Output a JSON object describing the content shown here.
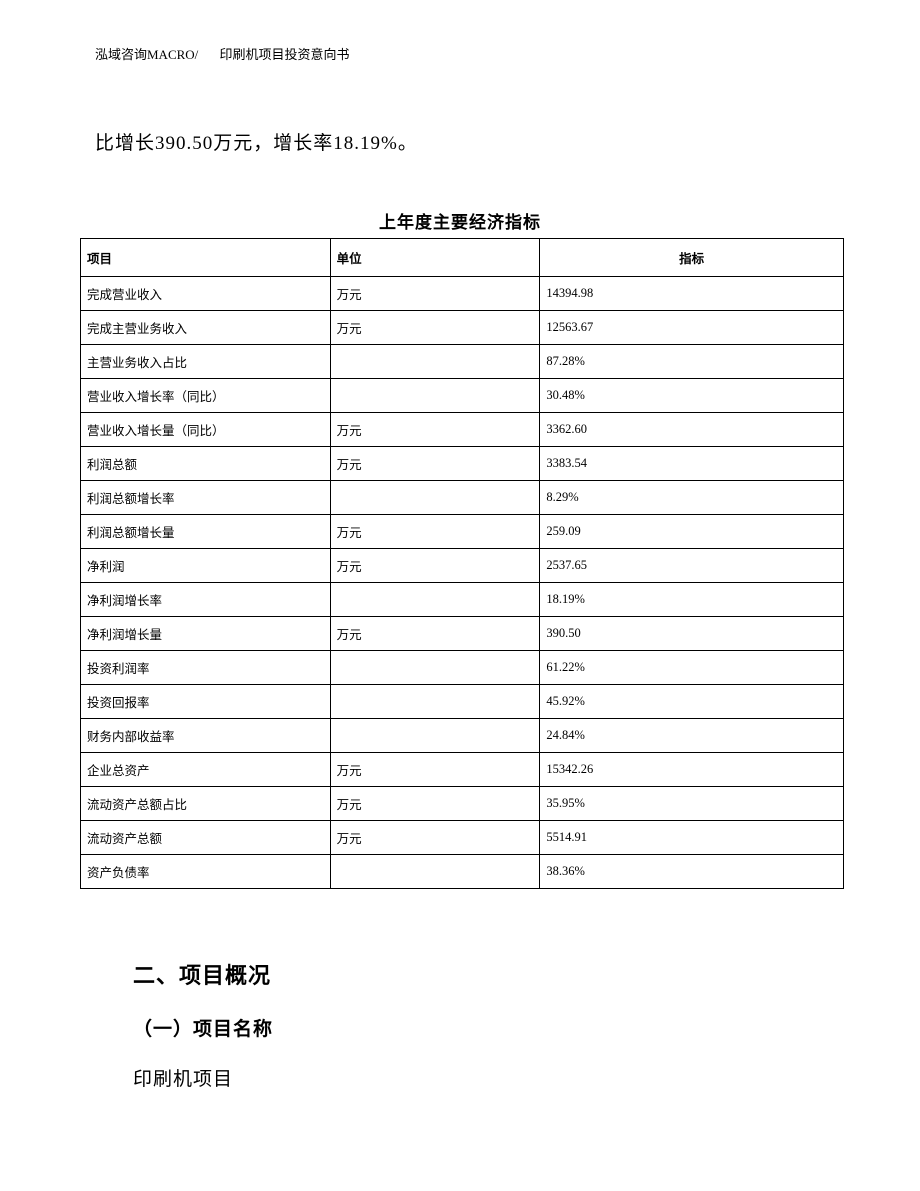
{
  "header": {
    "company": "泓域咨询MACRO/",
    "doc_title": "印刷机项目投资意向书"
  },
  "body_text": "比增长390.50万元，增长率18.19%。",
  "table_title": "上年度主要经济指标",
  "table": {
    "columns": {
      "project": "项目",
      "unit": "单位",
      "indicator": "指标"
    },
    "rows": [
      {
        "project": "完成营业收入",
        "unit": "万元",
        "indicator": "14394.98"
      },
      {
        "project": "完成主营业务收入",
        "unit": "万元",
        "indicator": "12563.67"
      },
      {
        "project": "主营业务收入占比",
        "unit": "",
        "indicator": "87.28%"
      },
      {
        "project": "营业收入增长率（同比）",
        "unit": "",
        "indicator": "30.48%"
      },
      {
        "project": "营业收入增长量（同比）",
        "unit": "万元",
        "indicator": "3362.60"
      },
      {
        "project": "利润总额",
        "unit": "万元",
        "indicator": "3383.54"
      },
      {
        "project": "利润总额增长率",
        "unit": "",
        "indicator": "8.29%"
      },
      {
        "project": "利润总额增长量",
        "unit": "万元",
        "indicator": "259.09"
      },
      {
        "project": "净利润",
        "unit": "万元",
        "indicator": "2537.65"
      },
      {
        "project": "净利润增长率",
        "unit": "",
        "indicator": "18.19%"
      },
      {
        "project": "净利润增长量",
        "unit": "万元",
        "indicator": "390.50"
      },
      {
        "project": "投资利润率",
        "unit": "",
        "indicator": "61.22%"
      },
      {
        "project": "投资回报率",
        "unit": "",
        "indicator": "45.92%"
      },
      {
        "project": "财务内部收益率",
        "unit": "",
        "indicator": "24.84%"
      },
      {
        "project": "企业总资产",
        "unit": "万元",
        "indicator": "15342.26"
      },
      {
        "project": "流动资产总额占比",
        "unit": "万元",
        "indicator": "35.95%"
      },
      {
        "project": "流动资产总额",
        "unit": "万元",
        "indicator": "5514.91"
      },
      {
        "project": "资产负债率",
        "unit": "",
        "indicator": "38.36%"
      }
    ]
  },
  "section_2": "二、项目概况",
  "subsection_2_1": "（一）项目名称",
  "project_name": "印刷机项目"
}
